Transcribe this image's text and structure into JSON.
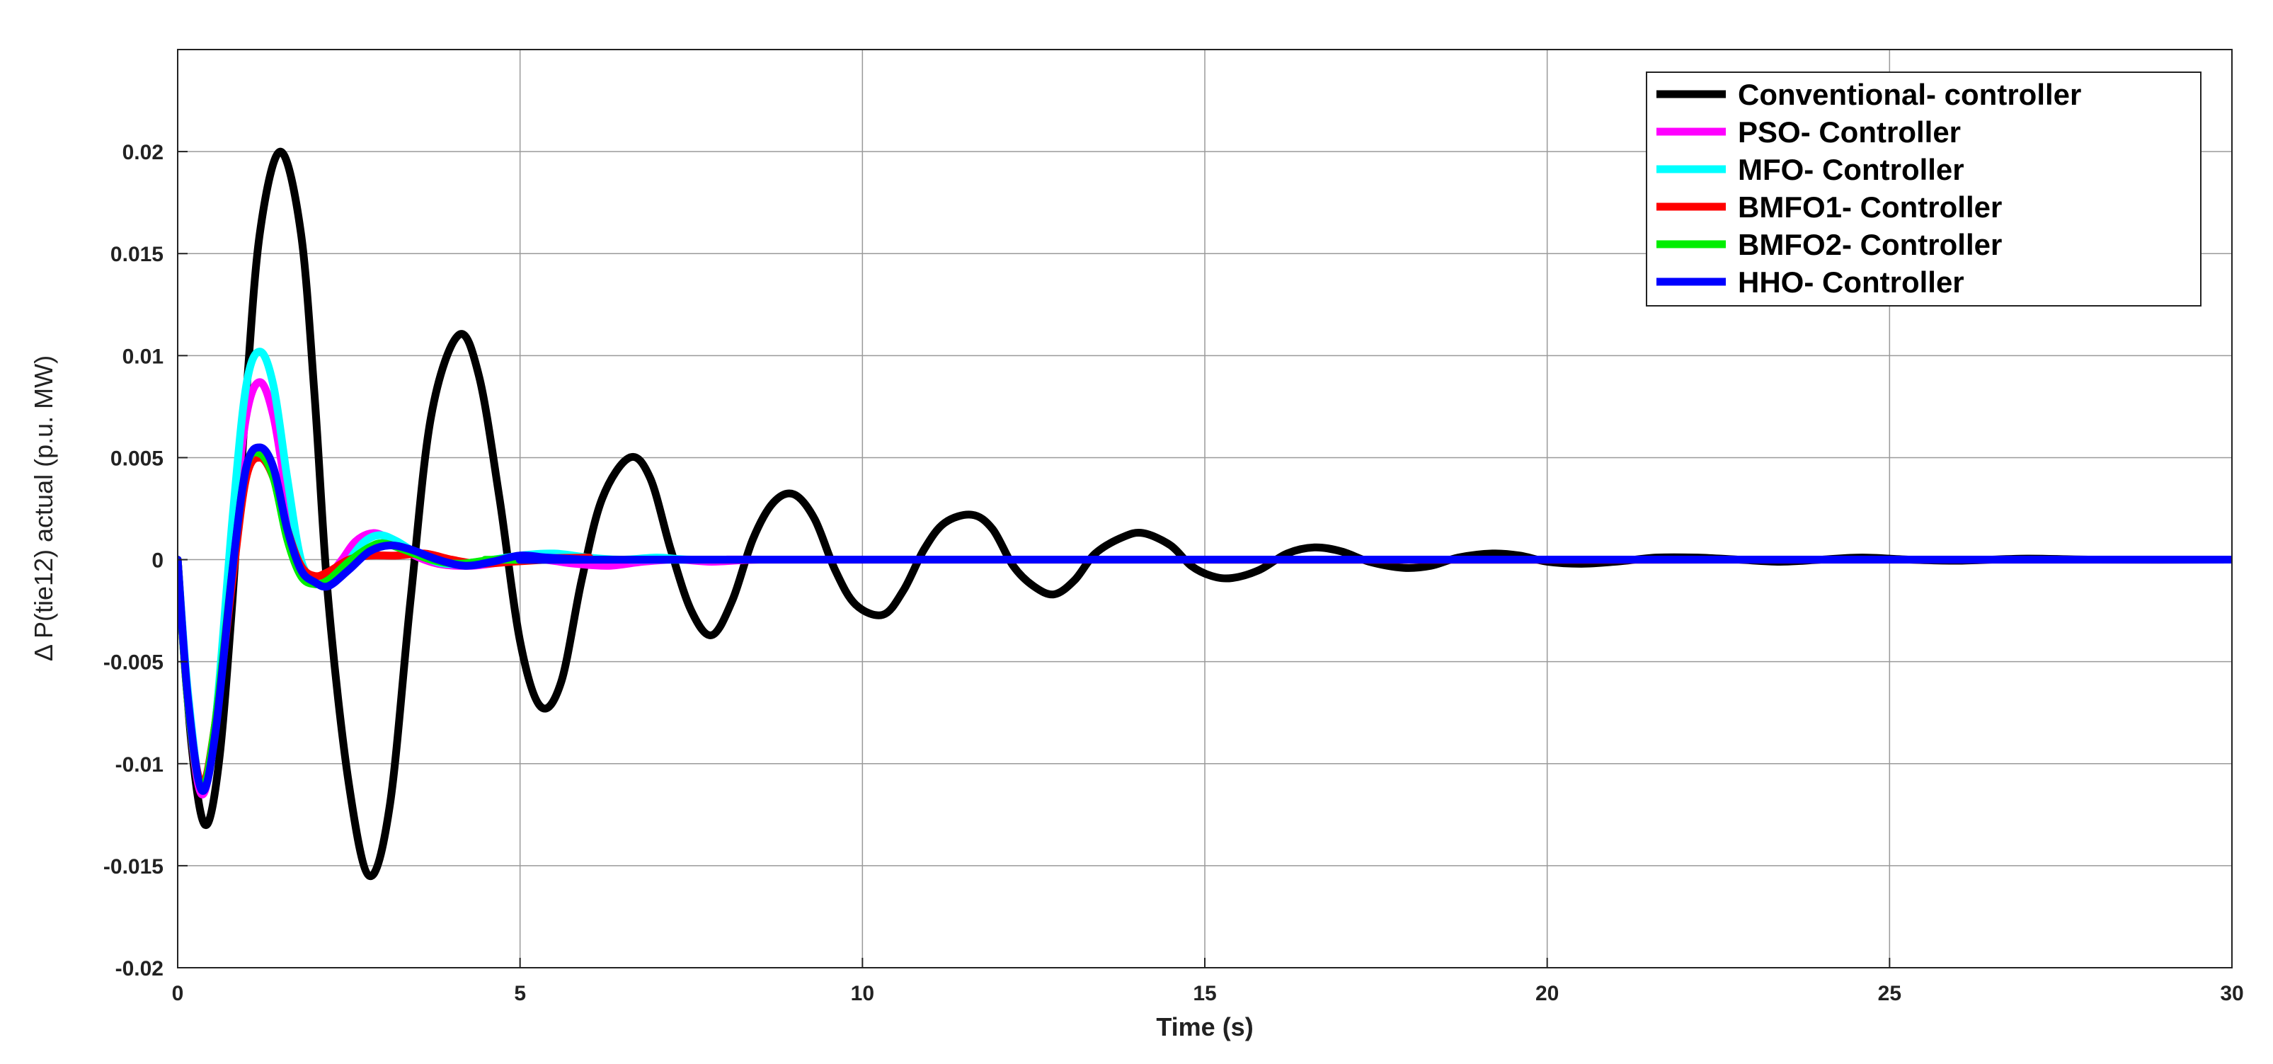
{
  "chart_data": {
    "type": "line",
    "title": "",
    "xlabel": "Time (s)",
    "ylabel": "Δ P(tie12) actual (p.u. MW)",
    "xlim": [
      0,
      30
    ],
    "ylim": [
      -0.02,
      0.025
    ],
    "x_ticks": [
      0,
      5,
      10,
      15,
      20,
      25,
      30
    ],
    "x_tick_labels": [
      "0",
      "5",
      "10",
      "15",
      "20",
      "25",
      "30"
    ],
    "y_ticks": [
      -0.02,
      -0.015,
      -0.01,
      -0.005,
      0,
      0.005,
      0.01,
      0.015,
      0.02
    ],
    "y_tick_labels": [
      "-0.02",
      "-0.015",
      "-0.01",
      "-0.005",
      "0",
      "0.005",
      "0.01",
      "0.015",
      "0.02"
    ],
    "grid": true,
    "legend_position": "top-right",
    "series": [
      {
        "name": "Conventional- controller",
        "color": "#000000",
        "points": [
          [
            0,
            0
          ],
          [
            0.2,
            -0.009
          ],
          [
            0.4,
            -0.013
          ],
          [
            0.6,
            -0.01
          ],
          [
            0.8,
            -0.002
          ],
          [
            1.0,
            0.008
          ],
          [
            1.2,
            0.016
          ],
          [
            1.5,
            0.02
          ],
          [
            1.8,
            0.016
          ],
          [
            2.0,
            0.008
          ],
          [
            2.2,
            -0.002
          ],
          [
            2.5,
            -0.011
          ],
          [
            2.8,
            -0.0155
          ],
          [
            3.1,
            -0.012
          ],
          [
            3.4,
            -0.002
          ],
          [
            3.7,
            0.007
          ],
          [
            4.1,
            0.011
          ],
          [
            4.4,
            0.009
          ],
          [
            4.7,
            0.003
          ],
          [
            5.0,
            -0.004
          ],
          [
            5.3,
            -0.0072
          ],
          [
            5.6,
            -0.006
          ],
          [
            5.9,
            -0.001
          ],
          [
            6.2,
            0.003
          ],
          [
            6.6,
            0.005
          ],
          [
            6.9,
            0.004
          ],
          [
            7.2,
            0.0005
          ],
          [
            7.5,
            -0.0025
          ],
          [
            7.8,
            -0.0037
          ],
          [
            8.1,
            -0.002
          ],
          [
            8.4,
            0.001
          ],
          [
            8.7,
            0.0028
          ],
          [
            9.0,
            0.0032
          ],
          [
            9.3,
            0.002
          ],
          [
            9.6,
            -0.0005
          ],
          [
            9.9,
            -0.0022
          ],
          [
            10.3,
            -0.0027
          ],
          [
            10.6,
            -0.0015
          ],
          [
            10.9,
            0.0005
          ],
          [
            11.2,
            0.0018
          ],
          [
            11.6,
            0.0022
          ],
          [
            11.9,
            0.0015
          ],
          [
            12.2,
            -0.0003
          ],
          [
            12.5,
            -0.0013
          ],
          [
            12.8,
            -0.0017
          ],
          [
            13.1,
            -0.001
          ],
          [
            13.4,
            0.0003
          ],
          [
            13.8,
            0.0011
          ],
          [
            14.1,
            0.0013
          ],
          [
            14.5,
            0.0007
          ],
          [
            14.8,
            -0.0003
          ],
          [
            15.1,
            -0.0008
          ],
          [
            15.4,
            -0.0009
          ],
          [
            15.8,
            -0.0005
          ],
          [
            16.2,
            0.0003
          ],
          [
            16.6,
            0.0006
          ],
          [
            17.0,
            0.0004
          ],
          [
            17.4,
            -0.0001
          ],
          [
            17.9,
            -0.0004
          ],
          [
            18.3,
            -0.0003
          ],
          [
            18.7,
            0.0001
          ],
          [
            19.2,
            0.0003
          ],
          [
            19.6,
            0.0002
          ],
          [
            20.0,
            -0.0001
          ],
          [
            20.5,
            -0.0002
          ],
          [
            21.0,
            -0.0001
          ],
          [
            21.6,
            0.0001
          ],
          [
            22.2,
            0.0001
          ],
          [
            22.8,
            0
          ],
          [
            23.4,
            -0.0001
          ],
          [
            24.0,
            0
          ],
          [
            24.6,
            0.0001
          ],
          [
            25.3,
            0
          ],
          [
            26.0,
            -5e-05
          ],
          [
            27.0,
            5e-05
          ],
          [
            28.0,
            0
          ],
          [
            30,
            0
          ]
        ]
      },
      {
        "name": "PSO- Controller",
        "color": "#ff00ff",
        "points": [
          [
            0,
            0
          ],
          [
            0.15,
            -0.007
          ],
          [
            0.35,
            -0.0115
          ],
          [
            0.55,
            -0.008
          ],
          [
            0.8,
            0.001
          ],
          [
            1.0,
            0.007
          ],
          [
            1.2,
            0.0087
          ],
          [
            1.4,
            0.007
          ],
          [
            1.6,
            0.003
          ],
          [
            1.8,
            -0.0002
          ],
          [
            2.0,
            -0.001
          ],
          [
            2.2,
            -0.0008
          ],
          [
            2.4,
            0
          ],
          [
            2.6,
            0.0009
          ],
          [
            2.85,
            0.0013
          ],
          [
            3.1,
            0.001
          ],
          [
            3.4,
            0.0003
          ],
          [
            3.8,
            -0.0002
          ],
          [
            4.3,
            -0.0003
          ],
          [
            4.8,
            -0.0001
          ],
          [
            5.3,
            0
          ],
          [
            5.8,
            -0.0002
          ],
          [
            6.3,
            -0.0003
          ],
          [
            6.8,
            -0.0001
          ],
          [
            7.3,
            0
          ],
          [
            7.8,
            -0.0001
          ],
          [
            8.5,
            0
          ],
          [
            10,
            0
          ],
          [
            30,
            0
          ]
        ]
      },
      {
        "name": "MFO- Controller",
        "color": "#00ffff",
        "points": [
          [
            0,
            0
          ],
          [
            0.15,
            -0.0065
          ],
          [
            0.35,
            -0.0112
          ],
          [
            0.55,
            -0.008
          ],
          [
            0.8,
            0.002
          ],
          [
            1.0,
            0.0085
          ],
          [
            1.2,
            0.0102
          ],
          [
            1.4,
            0.0085
          ],
          [
            1.6,
            0.004
          ],
          [
            1.8,
            0
          ],
          [
            2.0,
            -0.001
          ],
          [
            2.2,
            -0.0012
          ],
          [
            2.4,
            -0.0005
          ],
          [
            2.7,
            0.0008
          ],
          [
            2.95,
            0.0012
          ],
          [
            3.2,
            0.0009
          ],
          [
            3.5,
            0.0003
          ],
          [
            3.9,
            -0.0002
          ],
          [
            4.4,
            -0.0001
          ],
          [
            5.0,
            0.0002
          ],
          [
            5.5,
            0.0003
          ],
          [
            6.0,
            0.0001
          ],
          [
            6.5,
            0
          ],
          [
            7.0,
            0.0001
          ],
          [
            7.5,
            0
          ],
          [
            8.5,
            0
          ],
          [
            30,
            0
          ]
        ]
      },
      {
        "name": "BMFO1- Controller",
        "color": "#ff0000",
        "points": [
          [
            0,
            0
          ],
          [
            0.15,
            -0.007
          ],
          [
            0.35,
            -0.011
          ],
          [
            0.55,
            -0.008
          ],
          [
            0.8,
            -0.001
          ],
          [
            1.0,
            0.004
          ],
          [
            1.2,
            0.005
          ],
          [
            1.4,
            0.004
          ],
          [
            1.6,
            0.0015
          ],
          [
            1.8,
            -0.0003
          ],
          [
            2.0,
            -0.0008
          ],
          [
            2.2,
            -0.0006
          ],
          [
            2.5,
            0
          ],
          [
            2.8,
            0.0002
          ],
          [
            3.2,
            0.0002
          ],
          [
            3.6,
            0.0003
          ],
          [
            4.0,
            0
          ],
          [
            4.4,
            -0.0002
          ],
          [
            4.9,
            -0.0001
          ],
          [
            5.4,
            0
          ],
          [
            6.0,
            0.0001
          ],
          [
            7.0,
            0
          ],
          [
            30,
            0
          ]
        ]
      },
      {
        "name": "BMFO2- Controller",
        "color": "#00ee00",
        "points": [
          [
            0,
            0
          ],
          [
            0.15,
            -0.007
          ],
          [
            0.35,
            -0.0112
          ],
          [
            0.55,
            -0.008
          ],
          [
            0.8,
            -0.0005
          ],
          [
            1.0,
            0.0045
          ],
          [
            1.2,
            0.0052
          ],
          [
            1.4,
            0.004
          ],
          [
            1.6,
            0.001
          ],
          [
            1.8,
            -0.0008
          ],
          [
            2.0,
            -0.0012
          ],
          [
            2.2,
            -0.001
          ],
          [
            2.5,
            -0.0001
          ],
          [
            2.8,
            0.0006
          ],
          [
            3.0,
            0.0008
          ],
          [
            3.3,
            0.0005
          ],
          [
            3.7,
            0
          ],
          [
            4.1,
            -0.0002
          ],
          [
            4.6,
            0
          ],
          [
            5.1,
            0.0001
          ],
          [
            5.6,
            0
          ],
          [
            6.5,
            0
          ],
          [
            30,
            0
          ]
        ]
      },
      {
        "name": "HHO- Controller",
        "color": "#0000ff",
        "points": [
          [
            0,
            0
          ],
          [
            0.15,
            -0.0068
          ],
          [
            0.35,
            -0.0113
          ],
          [
            0.55,
            -0.0085
          ],
          [
            0.8,
            -0.0005
          ],
          [
            1.0,
            0.0045
          ],
          [
            1.2,
            0.0055
          ],
          [
            1.4,
            0.0045
          ],
          [
            1.6,
            0.0015
          ],
          [
            1.8,
            -0.0005
          ],
          [
            2.0,
            -0.0011
          ],
          [
            2.2,
            -0.0013
          ],
          [
            2.5,
            -0.0005
          ],
          [
            2.8,
            0.0004
          ],
          [
            3.1,
            0.0007
          ],
          [
            3.4,
            0.0005
          ],
          [
            3.8,
            0
          ],
          [
            4.2,
            -0.0003
          ],
          [
            4.6,
            -0.0001
          ],
          [
            5.0,
            0.0002
          ],
          [
            5.4,
            0.0001
          ],
          [
            6.0,
            0
          ],
          [
            7.0,
            0
          ],
          [
            30,
            0
          ]
        ]
      }
    ]
  }
}
